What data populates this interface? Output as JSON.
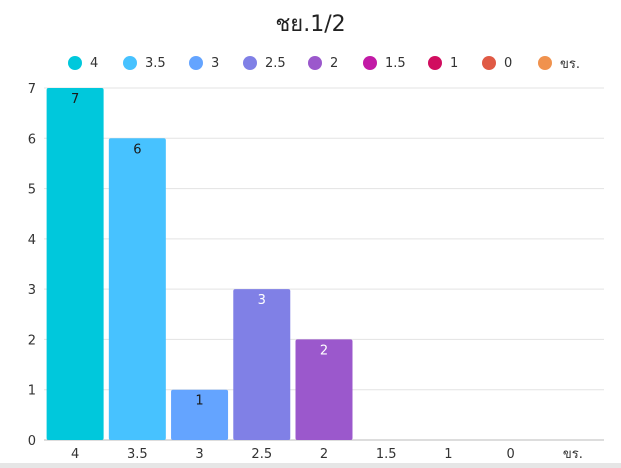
{
  "chart_data": {
    "type": "bar",
    "title": "ชย.1/2",
    "xlabel": "",
    "ylabel": "",
    "categories": [
      "4",
      "3.5",
      "3",
      "2.5",
      "2",
      "1.5",
      "1",
      "0",
      "ขร."
    ],
    "values": [
      7,
      6,
      1,
      3,
      2,
      0,
      0,
      0,
      0
    ],
    "colors": [
      "#00c8dc",
      "#47c2ff",
      "#64a4ff",
      "#8080e6",
      "#9b58cc",
      "#c21aa6",
      "#d10d5f",
      "#e05a45",
      "#f0924e"
    ],
    "label_colors": [
      "#1a1a1a",
      "#1a1a1a",
      "#1a1a1a",
      "#ffffff",
      "#ffffff",
      "#ffffff",
      "#ffffff",
      "#ffffff",
      "#ffffff"
    ],
    "yticks": [
      "0",
      "1",
      "2",
      "3",
      "4",
      "5",
      "6",
      "7"
    ],
    "ylim": [
      0,
      7
    ],
    "grid": true,
    "legend_position": "top"
  }
}
